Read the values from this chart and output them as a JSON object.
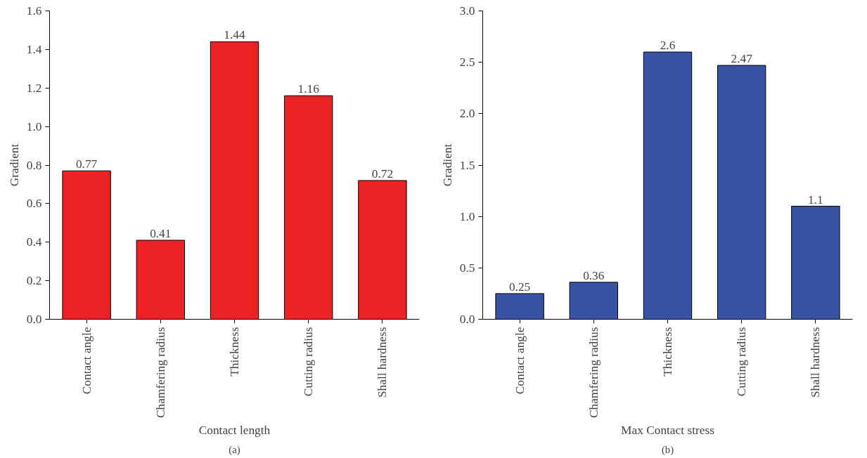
{
  "chart_data": [
    {
      "type": "bar",
      "xlabel": "Contact length",
      "ylabel": "Gradient",
      "categories": [
        "Contact angle",
        "Chamfering radius",
        "Thickness",
        "Cutting radius",
        "Shall hardness"
      ],
      "values": [
        0.77,
        0.41,
        1.44,
        1.16,
        0.72
      ],
      "color": "#ed2224",
      "ylim": [
        0,
        1.6
      ],
      "yticks": [
        {
          "value": 0,
          "label": "0.0"
        },
        0.2,
        0.4,
        0.6,
        0.8,
        {
          "value": 1,
          "label": "1.0"
        },
        1.2,
        1.4,
        1.6
      ],
      "data_labels": true,
      "grid": false,
      "annotations": [
        "(a)"
      ]
    },
    {
      "type": "bar",
      "xlabel": "Max Contact stress",
      "ylabel": "Gradient",
      "categories": [
        "Contact angle",
        "Chamfering radius",
        "Thickness",
        "Cutting radius",
        "Shall hardness"
      ],
      "values": [
        0.25,
        0.36,
        2.6,
        2.47,
        1.1
      ],
      "color": "#3953a4",
      "ylim": [
        0,
        3.0
      ],
      "yticks": [
        {
          "value": 0,
          "label": "0.0"
        },
        0.5,
        {
          "value": 1,
          "label": "1.0"
        },
        1.5,
        {
          "value": 2,
          "label": "2.0"
        },
        2.5,
        {
          "value": 3,
          "label": "3.0"
        }
      ],
      "data_labels": true,
      "grid": false,
      "annotations": [
        "(b)"
      ]
    }
  ]
}
